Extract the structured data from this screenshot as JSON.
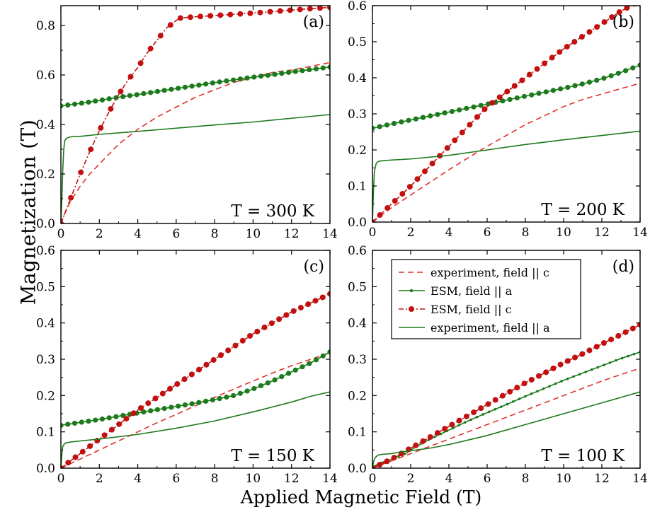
{
  "figure": {
    "ylabel": "Magnetization (T)",
    "xlabel": "Applied Magnetic Field (T)"
  },
  "legend": {
    "entries": [
      {
        "label": "experiment, field || c",
        "series": "exp_c"
      },
      {
        "label": "ESM, field || a",
        "series": "esm_a"
      },
      {
        "label": "ESM, field || c",
        "series": "esm_c"
      },
      {
        "label": "experiment, field || a",
        "series": "exp_a"
      }
    ]
  },
  "series_styles": {
    "exp_c": {
      "color": "#e0302a",
      "dash": "8,5",
      "marker": "none"
    },
    "esm_a": {
      "color": "#1b7a1b",
      "dash": "",
      "marker": "circle"
    },
    "esm_c": {
      "color": "#c21010",
      "dash": "7,3,2,3",
      "marker": "circle"
    },
    "exp_a": {
      "color": "#1b7a1b",
      "dash": "",
      "marker": "none"
    }
  },
  "chart_data": [
    {
      "type": "line",
      "panel": "(a)",
      "annotation": "T = 300 K",
      "xlim": [
        0,
        14
      ],
      "ylim": [
        0,
        0.88
      ],
      "xticks": [
        0,
        2,
        4,
        6,
        8,
        10,
        12,
        14
      ],
      "yticks": [
        0.0,
        0.2,
        0.4,
        0.6,
        0.8
      ],
      "ytick_labels": [
        "0.0",
        "0.2",
        "0.4",
        "0.6",
        "0.8"
      ],
      "series": [
        {
          "key": "exp_c",
          "x": [
            0,
            0.2,
            0.5,
            1,
            1.5,
            2,
            3,
            4,
            5,
            6,
            7,
            8,
            9,
            10,
            11,
            12,
            13,
            14
          ],
          "y": [
            0,
            0.04,
            0.09,
            0.15,
            0.2,
            0.24,
            0.32,
            0.38,
            0.43,
            0.47,
            0.51,
            0.54,
            0.57,
            0.59,
            0.61,
            0.62,
            0.635,
            0.65
          ]
        },
        {
          "key": "esm_a",
          "x": [
            0,
            1,
            2,
            3,
            4,
            5,
            6,
            7,
            8,
            9,
            10,
            11,
            12,
            13,
            14
          ],
          "y": [
            0.475,
            0.485,
            0.497,
            0.51,
            0.521,
            0.533,
            0.545,
            0.557,
            0.569,
            0.58,
            0.591,
            0.601,
            0.612,
            0.622,
            0.632
          ],
          "marker_count": 40
        },
        {
          "key": "esm_c",
          "x": [
            0,
            0.5,
            1,
            1.5,
            2,
            2.5,
            3,
            3.5,
            4,
            4.5,
            5,
            5.5,
            6,
            6.2,
            6.5,
            7,
            8,
            9,
            10,
            11,
            12,
            13,
            14
          ],
          "y": [
            0,
            0.1,
            0.2,
            0.29,
            0.375,
            0.45,
            0.52,
            0.58,
            0.63,
            0.69,
            0.74,
            0.79,
            0.82,
            0.83,
            0.832,
            0.835,
            0.84,
            0.845,
            0.85,
            0.856,
            0.862,
            0.868,
            0.873
          ],
          "marker_count": 28
        },
        {
          "key": "exp_a",
          "x": [
            0,
            0.05,
            0.1,
            0.15,
            0.2,
            0.3,
            0.5,
            1,
            2,
            4,
            6,
            8,
            10,
            12,
            14
          ],
          "y": [
            0,
            0.1,
            0.22,
            0.3,
            0.335,
            0.345,
            0.35,
            0.352,
            0.36,
            0.372,
            0.385,
            0.398,
            0.41,
            0.425,
            0.44
          ]
        }
      ]
    },
    {
      "type": "line",
      "panel": "(b)",
      "annotation": "T = 200 K",
      "xlim": [
        0,
        14
      ],
      "ylim": [
        0,
        0.6
      ],
      "xticks": [
        0,
        2,
        4,
        6,
        8,
        10,
        12,
        14
      ],
      "yticks": [
        0.0,
        0.1,
        0.2,
        0.3,
        0.4,
        0.5,
        0.6
      ],
      "ytick_labels": [
        "0.0",
        "0.1",
        "0.2",
        "0.3",
        "0.4",
        "0.5",
        "0.6"
      ],
      "series": [
        {
          "key": "exp_c",
          "x": [
            0,
            1,
            2,
            3,
            4,
            5,
            6,
            7,
            8,
            9,
            10,
            11,
            12,
            13,
            14
          ],
          "y": [
            0,
            0.04,
            0.075,
            0.11,
            0.145,
            0.178,
            0.21,
            0.24,
            0.27,
            0.295,
            0.32,
            0.34,
            0.355,
            0.37,
            0.385
          ]
        },
        {
          "key": "esm_a",
          "x": [
            0,
            1,
            2,
            3,
            4,
            5,
            6,
            7,
            8,
            9,
            10,
            11,
            12,
            13,
            14
          ],
          "y": [
            0.26,
            0.272,
            0.283,
            0.294,
            0.305,
            0.316,
            0.327,
            0.338,
            0.349,
            0.36,
            0.371,
            0.383,
            0.397,
            0.415,
            0.435
          ],
          "marker_count": 38
        },
        {
          "key": "esm_c",
          "x": [
            0,
            1,
            2,
            3,
            4,
            5,
            6,
            7,
            8,
            9,
            10,
            11,
            12,
            13,
            13.7
          ],
          "y": [
            0,
            0.05,
            0.1,
            0.155,
            0.21,
            0.265,
            0.32,
            0.36,
            0.4,
            0.44,
            0.48,
            0.515,
            0.55,
            0.585,
            0.605
          ],
          "marker_count": 36
        },
        {
          "key": "exp_a",
          "x": [
            0,
            0.05,
            0.1,
            0.2,
            0.3,
            0.5,
            1,
            2,
            4,
            6,
            8,
            10,
            12,
            14
          ],
          "y": [
            0,
            0.08,
            0.14,
            0.163,
            0.168,
            0.17,
            0.172,
            0.175,
            0.185,
            0.2,
            0.215,
            0.228,
            0.24,
            0.252
          ]
        }
      ]
    },
    {
      "type": "line",
      "panel": "(c)",
      "annotation": "T = 150 K",
      "xlim": [
        0,
        14
      ],
      "ylim": [
        0,
        0.6
      ],
      "xticks": [
        0,
        2,
        4,
        6,
        8,
        10,
        12,
        14
      ],
      "yticks": [
        0.0,
        0.1,
        0.2,
        0.3,
        0.4,
        0.5,
        0.6
      ],
      "ytick_labels": [
        "0.0",
        "0.1",
        "0.2",
        "0.3",
        "0.4",
        "0.5",
        "0.6"
      ],
      "series": [
        {
          "key": "exp_c",
          "x": [
            0,
            1,
            2,
            3,
            4,
            5,
            6,
            7,
            8,
            9,
            10,
            11,
            12,
            13,
            14
          ],
          "y": [
            0,
            0.025,
            0.05,
            0.075,
            0.1,
            0.125,
            0.148,
            0.172,
            0.195,
            0.218,
            0.24,
            0.262,
            0.282,
            0.3,
            0.318
          ]
        },
        {
          "key": "esm_a",
          "x": [
            0,
            1,
            2,
            3,
            4,
            5,
            6,
            7,
            8,
            9,
            10,
            11,
            12,
            13,
            14
          ],
          "y": [
            0.118,
            0.126,
            0.134,
            0.143,
            0.152,
            0.161,
            0.17,
            0.179,
            0.189,
            0.2,
            0.218,
            0.24,
            0.265,
            0.29,
            0.32
          ],
          "marker_count": 40
        },
        {
          "key": "esm_c",
          "x": [
            0,
            1,
            2,
            3,
            4,
            5,
            6,
            7,
            8,
            9,
            10,
            11,
            12,
            13,
            14
          ],
          "y": [
            0,
            0.04,
            0.08,
            0.12,
            0.16,
            0.195,
            0.23,
            0.265,
            0.3,
            0.335,
            0.37,
            0.4,
            0.43,
            0.455,
            0.48
          ],
          "marker_count": 38
        },
        {
          "key": "exp_a",
          "x": [
            0,
            0.05,
            0.1,
            0.2,
            0.3,
            0.5,
            1,
            2,
            4,
            6,
            8,
            10,
            12,
            13,
            14
          ],
          "y": [
            0,
            0.04,
            0.06,
            0.068,
            0.07,
            0.072,
            0.075,
            0.08,
            0.093,
            0.11,
            0.13,
            0.155,
            0.182,
            0.198,
            0.21
          ]
        }
      ]
    },
    {
      "type": "line",
      "panel": "(d)",
      "annotation": "T = 100 K",
      "xlim": [
        0,
        14
      ],
      "ylim": [
        0,
        0.6
      ],
      "xticks": [
        0,
        2,
        4,
        6,
        8,
        10,
        12,
        14
      ],
      "yticks": [
        0.0,
        0.1,
        0.2,
        0.3,
        0.4,
        0.5,
        0.6
      ],
      "ytick_labels": [
        "0.0",
        "0.1",
        "0.2",
        "0.3",
        "0.4",
        "0.5",
        "0.6"
      ],
      "series": [
        {
          "key": "exp_c",
          "x": [
            0,
            1,
            2,
            3,
            4,
            5,
            6,
            7,
            8,
            9,
            10,
            11,
            12,
            13,
            14
          ],
          "y": [
            0,
            0.02,
            0.04,
            0.06,
            0.08,
            0.1,
            0.12,
            0.14,
            0.16,
            0.18,
            0.2,
            0.22,
            0.24,
            0.258,
            0.275
          ]
        },
        {
          "key": "esm_a",
          "x": [
            0.1,
            0.3,
            0.6,
            0.9,
            1.0,
            1.2,
            1.5,
            1.8,
            2.0,
            2.5,
            3,
            4,
            5,
            6,
            7,
            8,
            9,
            10,
            11,
            12,
            13,
            14
          ],
          "y": [
            0.005,
            0.012,
            0.018,
            0.022,
            0.025,
            0.03,
            0.035,
            0.042,
            0.05,
            0.065,
            0.08,
            0.105,
            0.13,
            0.153,
            0.175,
            0.198,
            0.22,
            0.242,
            0.262,
            0.282,
            0.302,
            0.32
          ],
          "marker_count": 45
        },
        {
          "key": "esm_c",
          "x": [
            0,
            1,
            2,
            3,
            4,
            5,
            6,
            7,
            8,
            9,
            10,
            11,
            12,
            13,
            14
          ],
          "y": [
            0,
            0.025,
            0.055,
            0.085,
            0.115,
            0.145,
            0.175,
            0.205,
            0.235,
            0.262,
            0.29,
            0.315,
            0.342,
            0.368,
            0.395
          ],
          "marker_count": 38
        },
        {
          "key": "exp_a",
          "x": [
            0,
            0.05,
            0.1,
            0.2,
            0.3,
            0.5,
            1,
            1.5,
            2,
            3,
            4,
            6,
            8,
            10,
            12,
            14
          ],
          "y": [
            0,
            0.015,
            0.025,
            0.032,
            0.036,
            0.038,
            0.04,
            0.045,
            0.048,
            0.055,
            0.065,
            0.09,
            0.12,
            0.15,
            0.18,
            0.21
          ]
        }
      ]
    }
  ]
}
